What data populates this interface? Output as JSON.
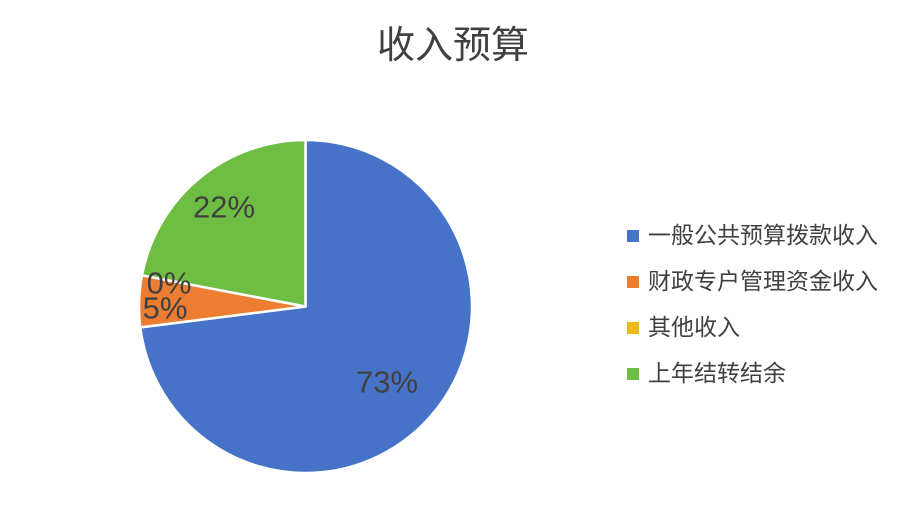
{
  "title": "收入预算",
  "colors": {
    "text": "#404040",
    "slice_separator": "#ffffff",
    "background": "#ffffff"
  },
  "chart_data": {
    "type": "pie",
    "title": "收入预算",
    "start_angle_deg": 0,
    "direction": "clockwise",
    "legend_position": "right",
    "slices": [
      {
        "label": "一般公共预算拨款收入",
        "value": 73,
        "pct_label": "73%",
        "color": "#4673C8"
      },
      {
        "label": "财政专户管理资金收入",
        "value": 5,
        "pct_label": "5%",
        "color": "#ED7D31"
      },
      {
        "label": "其他收入",
        "value": 0,
        "pct_label": "0%",
        "color": "#EDB91F"
      },
      {
        "label": "上年结转结余",
        "value": 22,
        "pct_label": "22%",
        "color": "#6FBE44"
      }
    ]
  }
}
